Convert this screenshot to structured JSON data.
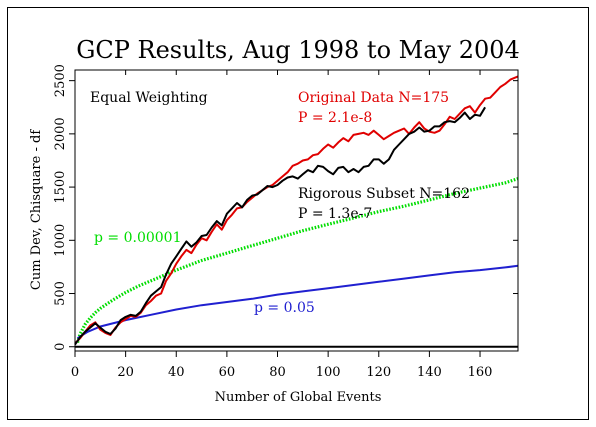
{
  "chart_data": {
    "type": "line",
    "title": "GCP Results, Aug 1998 to May 2004",
    "xlabel": "Number of Global Events",
    "ylabel": "Cum Dev, Chisquare - df",
    "xlim": [
      0,
      175
    ],
    "ylim": [
      -40,
      2600
    ],
    "x_ticks": [
      "0",
      "20",
      "40",
      "60",
      "80",
      "100",
      "120",
      "140",
      "160"
    ],
    "x_tick_values": [
      0,
      20,
      40,
      60,
      80,
      100,
      120,
      140,
      160
    ],
    "y_ticks": [
      "0",
      "500",
      "1000",
      "1500",
      "2000",
      "2500"
    ],
    "y_tick_values": [
      0,
      500,
      1000,
      1500,
      2000,
      2500
    ],
    "grid": false,
    "annotations": [
      {
        "text": "Equal Weighting",
        "color": "#000000"
      },
      {
        "text": "Original Data N=175",
        "color": "#e00000"
      },
      {
        "text": "P = 2.1e-8",
        "color": "#e00000"
      },
      {
        "text": "Rigorous Subset N=162",
        "color": "#000000"
      },
      {
        "text": "P = 1.3e-7",
        "color": "#000000"
      },
      {
        "text": "p = 0.00001",
        "color": "#00dd00"
      },
      {
        "text": "p = 0.05",
        "color": "#2020d0"
      }
    ],
    "series": [
      {
        "color": "#e00000",
        "x": [
          0,
          2,
          4,
          6,
          8,
          10,
          12,
          14,
          16,
          18,
          20,
          22,
          24,
          26,
          28,
          30,
          32,
          34,
          36,
          38,
          40,
          42,
          44,
          46,
          48,
          50,
          52,
          54,
          56,
          58,
          60,
          62,
          64,
          66,
          68,
          70,
          72,
          74,
          76,
          78,
          80,
          82,
          84,
          86,
          88,
          90,
          92,
          94,
          96,
          98,
          100,
          102,
          104,
          106,
          108,
          110,
          112,
          114,
          116,
          118,
          120,
          122,
          124,
          126,
          128,
          130,
          132,
          134,
          136,
          138,
          140,
          142,
          144,
          146,
          148,
          150,
          152,
          154,
          156,
          158,
          160,
          162,
          164,
          166,
          168,
          170,
          172,
          175
        ],
        "values": [
          30,
          80,
          140,
          200,
          230,
          160,
          130,
          110,
          180,
          230,
          260,
          290,
          280,
          320,
          390,
          430,
          480,
          500,
          620,
          690,
          780,
          850,
          910,
          880,
          960,
          1020,
          1000,
          1080,
          1150,
          1100,
          1190,
          1240,
          1300,
          1310,
          1360,
          1400,
          1440,
          1470,
          1500,
          1520,
          1560,
          1600,
          1640,
          1700,
          1720,
          1750,
          1760,
          1800,
          1810,
          1860,
          1900,
          1870,
          1920,
          1960,
          1930,
          1990,
          2000,
          2010,
          1990,
          2030,
          1990,
          1950,
          1980,
          2010,
          2030,
          2050,
          2000,
          2060,
          2110,
          2050,
          2020,
          2010,
          2030,
          2090,
          2160,
          2140,
          2190,
          2240,
          2260,
          2200,
          2270,
          2330,
          2340,
          2390,
          2440,
          2470,
          2510,
          2540
        ]
      },
      {
        "color": "#000000",
        "x": [
          0,
          2,
          4,
          6,
          8,
          10,
          12,
          14,
          16,
          18,
          20,
          22,
          24,
          26,
          28,
          30,
          32,
          34,
          36,
          38,
          40,
          42,
          44,
          46,
          48,
          50,
          52,
          54,
          56,
          58,
          60,
          62,
          64,
          66,
          68,
          70,
          72,
          74,
          76,
          78,
          80,
          82,
          84,
          86,
          88,
          90,
          92,
          94,
          96,
          98,
          100,
          102,
          104,
          106,
          108,
          110,
          112,
          114,
          116,
          118,
          120,
          122,
          124,
          126,
          128,
          130,
          132,
          134,
          136,
          138,
          140,
          142,
          144,
          146,
          148,
          150,
          152,
          154,
          156,
          158,
          160,
          162
        ],
        "values": [
          20,
          90,
          140,
          180,
          220,
          180,
          140,
          120,
          170,
          250,
          280,
          300,
          290,
          330,
          410,
          480,
          520,
          560,
          680,
          780,
          850,
          920,
          990,
          940,
          980,
          1040,
          1050,
          1120,
          1180,
          1140,
          1250,
          1300,
          1350,
          1310,
          1380,
          1420,
          1430,
          1470,
          1510,
          1500,
          1520,
          1560,
          1590,
          1600,
          1580,
          1620,
          1660,
          1640,
          1700,
          1690,
          1650,
          1620,
          1680,
          1690,
          1640,
          1670,
          1640,
          1690,
          1700,
          1760,
          1760,
          1720,
          1760,
          1850,
          1900,
          1950,
          2000,
          2020,
          2060,
          2020,
          2030,
          2070,
          2070,
          2110,
          2120,
          2110,
          2150,
          2200,
          2140,
          2180,
          2170,
          2250
        ]
      },
      {
        "color": "#00dd00",
        "dotted": true,
        "function": "3.9*sqrt(x)+... (p = 0.00001 envelope)",
        "x": [
          1,
          2,
          4,
          6,
          8,
          10,
          15,
          20,
          25,
          30,
          40,
          50,
          60,
          70,
          80,
          90,
          100,
          110,
          120,
          130,
          140,
          150,
          160,
          170,
          175
        ],
        "values": [
          40,
          120,
          210,
          270,
          320,
          360,
          440,
          510,
          570,
          620,
          720,
          810,
          880,
          950,
          1020,
          1090,
          1150,
          1210,
          1270,
          1320,
          1380,
          1440,
          1490,
          1540,
          1580
        ]
      },
      {
        "color": "#2020d0",
        "x": [
          1,
          5,
          10,
          20,
          30,
          40,
          50,
          60,
          70,
          80,
          90,
          100,
          110,
          120,
          130,
          140,
          150,
          160,
          170,
          175
        ],
        "values": [
          80,
          140,
          190,
          250,
          300,
          350,
          390,
          420,
          450,
          490,
          520,
          550,
          580,
          610,
          640,
          670,
          700,
          720,
          745,
          760
        ]
      }
    ]
  }
}
